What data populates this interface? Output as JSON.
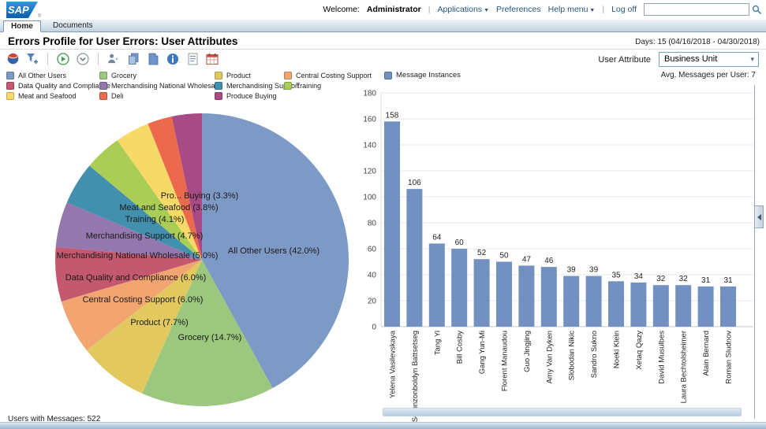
{
  "header": {
    "welcome_label": "Welcome:",
    "username": "Administrator",
    "menu": [
      {
        "label": "Applications",
        "dropdown": true
      },
      {
        "label": "Preferences",
        "dropdown": false
      },
      {
        "label": "Help menu",
        "dropdown": true
      },
      {
        "label": "Log off",
        "dropdown": false
      }
    ],
    "search_value": "",
    "logo_text": "SAP"
  },
  "tabs": [
    {
      "label": "Home",
      "active": true
    },
    {
      "label": "Documents",
      "active": false
    }
  ],
  "page": {
    "title": "Errors Profile for User Errors: User Attributes",
    "days_label": "Days: 15 (04/16/2018 - 04/30/2018)",
    "user_attribute_label": "User Attribute",
    "user_attribute_value": "Business Unit",
    "bar_legend_label": "Message Instances",
    "avg_messages_label": "Avg. Messages per User: 7",
    "users_with_messages": "Users with Messages: 522"
  },
  "toolbar": {
    "icons": [
      "chart-sphere-icon",
      "add-filter-icon",
      "run-icon",
      "dropdown-circle-icon",
      "user-icon",
      "copy-icon",
      "document-icon",
      "info-icon",
      "report-icon",
      "calendar-icon"
    ]
  },
  "chart_data": [
    {
      "type": "pie",
      "title": "Errors Profile for User Errors: User Attributes",
      "legend_position": "top",
      "slices": [
        {
          "label": "All Other Users",
          "pct": 42.0,
          "color": "#7d9ac7",
          "display": "All Other Users (42.0%)"
        },
        {
          "label": "Grocery",
          "pct": 14.7,
          "color": "#9bc77e",
          "display": "Grocery (14.7%)"
        },
        {
          "label": "Product",
          "pct": 7.7,
          "color": "#e2c95f",
          "display": "Product (7.7%)"
        },
        {
          "label": "Central Costing Support",
          "pct": 6.0,
          "color": "#f2a471",
          "display": "Central Costing Support (6.0%)"
        },
        {
          "label": "Data Quality and Compliance",
          "pct": 6.0,
          "color": "#c4586f",
          "display": "Data Quality and Compliance (6.0%)"
        },
        {
          "label": "Merchandising National Wholesale",
          "pct": 5.0,
          "color": "#9477ad",
          "display": "Merchandising National Wholesale (5.0%)"
        },
        {
          "label": "Merchandising Support",
          "pct": 4.7,
          "color": "#4290ad",
          "display": "Merchandising Support (4.7%)"
        },
        {
          "label": "Training",
          "pct": 4.1,
          "color": "#aacd56",
          "display": "Training (4.1%)"
        },
        {
          "label": "Meat and Seafood",
          "pct": 3.8,
          "color": "#f6d967",
          "display": "Meat and Seafood (3.8%)"
        },
        {
          "label": "Deli",
          "pct": 2.7,
          "color": "#eb6a4d",
          "display": ""
        },
        {
          "label": "Produce Buying",
          "pct": 3.3,
          "color": "#a84a84",
          "display": "Pro... Buying (3.3%)"
        }
      ],
      "footnote": "Users with Messages: 522"
    },
    {
      "type": "bar",
      "categories": [
        "Yelena Vasilevskaya",
        "Soronzonboldyn Battsetseg",
        "Tang Yi",
        "Bill Cosby",
        "Gang Yun-Mi",
        "Florent Manaudou",
        "Guo Jingjing",
        "Amy Van Dyken",
        "Slobodan Nikic",
        "Sandro Sukno",
        "Noeki Klein",
        "Xetaq Qazy",
        "David Musulbes",
        "Laura Bechtolsheimer",
        "Alain Bernard",
        "Roman Sludnov"
      ],
      "series": [
        {
          "name": "Message Instances",
          "color": "#7291c0",
          "values": [
            158,
            106,
            64,
            60,
            52,
            50,
            47,
            46,
            39,
            39,
            35,
            34,
            32,
            32,
            31,
            31
          ]
        }
      ],
      "ylim": [
        0,
        180
      ],
      "ytick_step": 20,
      "grid": true,
      "legend_position": "top-left",
      "annotation": "Avg. Messages per User: 7"
    }
  ]
}
